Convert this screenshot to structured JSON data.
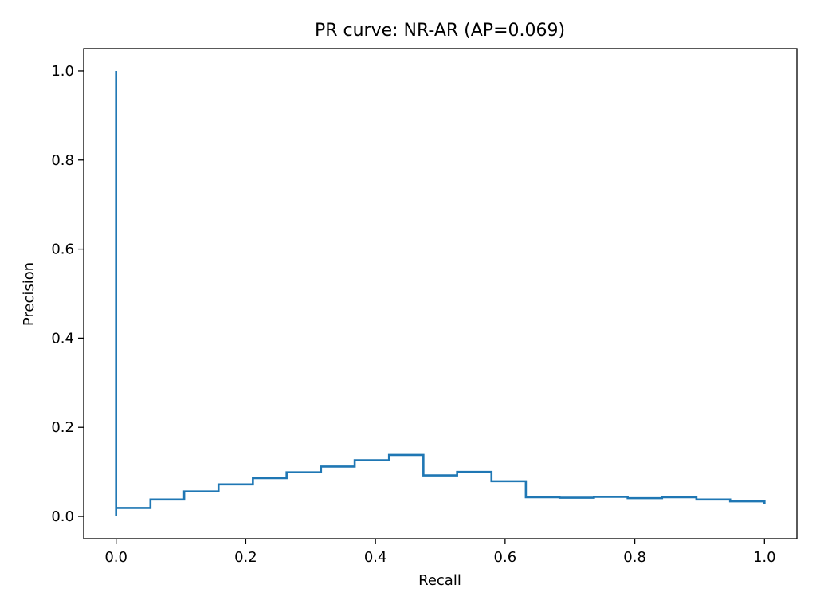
{
  "chart_data": {
    "type": "line",
    "title": "PR curve: NR-AR (AP=0.069)",
    "xlabel": "Recall",
    "ylabel": "Precision",
    "xlim": [
      -0.05,
      1.05
    ],
    "ylim": [
      -0.05,
      1.05
    ],
    "xticks": [
      0.0,
      0.2,
      0.4,
      0.6,
      0.8,
      1.0
    ],
    "yticks": [
      0.0,
      0.2,
      0.4,
      0.6,
      0.8,
      1.0
    ],
    "xtick_labels": [
      "0.0",
      "0.2",
      "0.4",
      "0.6",
      "0.8",
      "1.0"
    ],
    "ytick_labels": [
      "0.0",
      "0.2",
      "0.4",
      "0.6",
      "0.8",
      "1.0"
    ],
    "grid": false,
    "line_color": "#1f77b4",
    "series": [
      {
        "step": "post",
        "x": [
          0.0,
          0.0,
          0.0,
          0.053,
          0.105,
          0.158,
          0.211,
          0.263,
          0.316,
          0.368,
          0.421,
          0.474,
          0.526,
          0.579,
          0.632,
          0.684,
          0.737,
          0.789,
          0.842,
          0.895,
          0.947,
          1.0
        ],
        "y": [
          1.0,
          0.0,
          0.019,
          0.038,
          0.056,
          0.072,
          0.086,
          0.099,
          0.112,
          0.126,
          0.138,
          0.092,
          0.1,
          0.079,
          0.043,
          0.042,
          0.044,
          0.041,
          0.043,
          0.038,
          0.034,
          0.027
        ]
      }
    ]
  }
}
